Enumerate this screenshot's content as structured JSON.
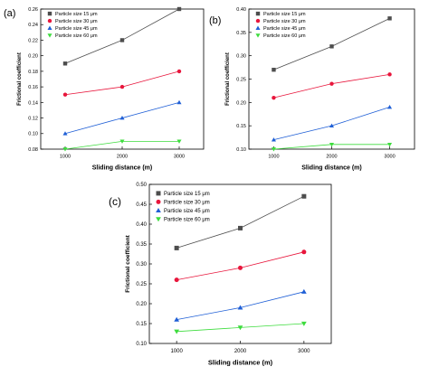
{
  "chart_data": [
    {
      "type": "line",
      "panel_label": "(a)",
      "xlabel": "Sliding distance (m)",
      "ylabel": "Frictional coefficient",
      "x": [
        1000,
        2000,
        3000
      ],
      "x_ticks": [
        "1000",
        "2000",
        "3000"
      ],
      "ylim": [
        0.08,
        0.26
      ],
      "y_ticks": [
        "0.08",
        "0.10",
        "0.12",
        "0.14",
        "0.16",
        "0.18",
        "0.20",
        "0.22",
        "0.24",
        "0.26"
      ],
      "legend_position": "top-left",
      "series": [
        {
          "name": "Particle size 15 μm",
          "color": "#4d4d4d",
          "marker": "square",
          "values": [
            0.19,
            0.22,
            0.26
          ]
        },
        {
          "name": "Particle size 30 μm",
          "color": "#e8163c",
          "marker": "circle",
          "values": [
            0.15,
            0.16,
            0.18
          ]
        },
        {
          "name": "Particle size 45 μm",
          "color": "#1f5fd6",
          "marker": "triangle-up",
          "values": [
            0.1,
            0.12,
            0.14
          ]
        },
        {
          "name": "Particle size 60 μm",
          "color": "#3ddc3d",
          "marker": "triangle-down",
          "values": [
            0.08,
            0.09,
            0.09
          ]
        }
      ]
    },
    {
      "type": "line",
      "panel_label": "(b)",
      "xlabel": "Sliding distance (m)",
      "ylabel": "Frictional coefficient",
      "x": [
        1000,
        2000,
        3000
      ],
      "x_ticks": [
        "1000",
        "2000",
        "3000"
      ],
      "ylim": [
        0.1,
        0.4
      ],
      "y_ticks": [
        "0.10",
        "0.15",
        "0.20",
        "0.25",
        "0.30",
        "0.35",
        "0.40"
      ],
      "legend_position": "top-left",
      "series": [
        {
          "name": "Particle size 15 μm",
          "color": "#4d4d4d",
          "marker": "square",
          "values": [
            0.27,
            0.32,
            0.38
          ]
        },
        {
          "name": "Particle size 30 μm",
          "color": "#e8163c",
          "marker": "circle",
          "values": [
            0.21,
            0.24,
            0.26
          ]
        },
        {
          "name": "Particle size 45 μm",
          "color": "#1f5fd6",
          "marker": "triangle-up",
          "values": [
            0.12,
            0.15,
            0.19
          ]
        },
        {
          "name": "Particle size 60 μm",
          "color": "#3ddc3d",
          "marker": "triangle-down",
          "values": [
            0.1,
            0.11,
            0.11
          ]
        }
      ]
    },
    {
      "type": "line",
      "panel_label": "(c)",
      "xlabel": "Sliding distance (m)",
      "ylabel": "Frictional coefficient",
      "x": [
        1000,
        2000,
        3000
      ],
      "x_ticks": [
        "1000",
        "2000",
        "3000"
      ],
      "ylim": [
        0.1,
        0.5
      ],
      "y_ticks": [
        "0.10",
        "0.15",
        "0.20",
        "0.25",
        "0.30",
        "0.35",
        "0.40",
        "0.45",
        "0.50"
      ],
      "legend_position": "top-left",
      "series": [
        {
          "name": "Particle size 15 μm",
          "color": "#4d4d4d",
          "marker": "square",
          "values": [
            0.34,
            0.39,
            0.47
          ]
        },
        {
          "name": "Particle size 30 μm",
          "color": "#e8163c",
          "marker": "circle",
          "values": [
            0.26,
            0.29,
            0.33
          ]
        },
        {
          "name": "Particle size 45 μm",
          "color": "#1f5fd6",
          "marker": "triangle-up",
          "values": [
            0.16,
            0.19,
            0.23
          ]
        },
        {
          "name": "Particle size 60 μm",
          "color": "#3ddc3d",
          "marker": "triangle-down",
          "values": [
            0.13,
            0.14,
            0.15
          ]
        }
      ]
    }
  ]
}
